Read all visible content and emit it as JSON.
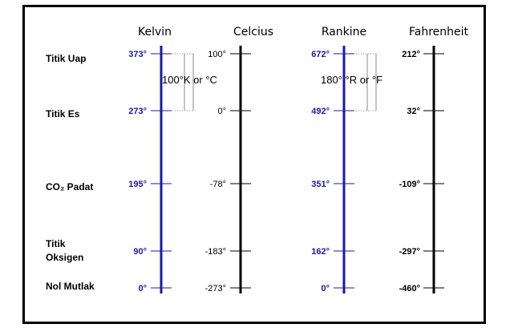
{
  "scales": [
    {
      "name": "Kelvin",
      "color": "#1a1aa8",
      "style": "bold",
      "values": [
        "373°",
        "273°",
        "195°",
        "90°",
        "0°"
      ]
    },
    {
      "name": "Celcius",
      "color": "#000000",
      "style": "normal",
      "values": [
        "100°",
        "0°",
        "-78°",
        "-183°",
        "-273°"
      ]
    },
    {
      "name": "Rankine",
      "color": "#1a1aa8",
      "style": "bold",
      "values": [
        "672°",
        "492°",
        "351°",
        "162°",
        "0°"
      ]
    },
    {
      "name": "Fahrenheit",
      "color": "#000000",
      "style": "bold",
      "values": [
        "212°",
        "32°",
        "-109°",
        "-297°",
        "-460°"
      ]
    }
  ],
  "points": [
    {
      "label": [
        "Titik Uap"
      ]
    },
    {
      "label": [
        "Titik Es"
      ]
    },
    {
      "label": [
        "CO₂ Padat"
      ]
    },
    {
      "label": [
        "Titik",
        "Oksigen"
      ]
    },
    {
      "label": [
        "Nol Mutlak"
      ]
    }
  ],
  "spans": [
    {
      "label": "100°K or °C"
    },
    {
      "label": "180° °R or °F"
    }
  ],
  "colors": {
    "scale_blue": "#1a1aa8",
    "scale_black": "#000000",
    "guide": "#888888"
  }
}
